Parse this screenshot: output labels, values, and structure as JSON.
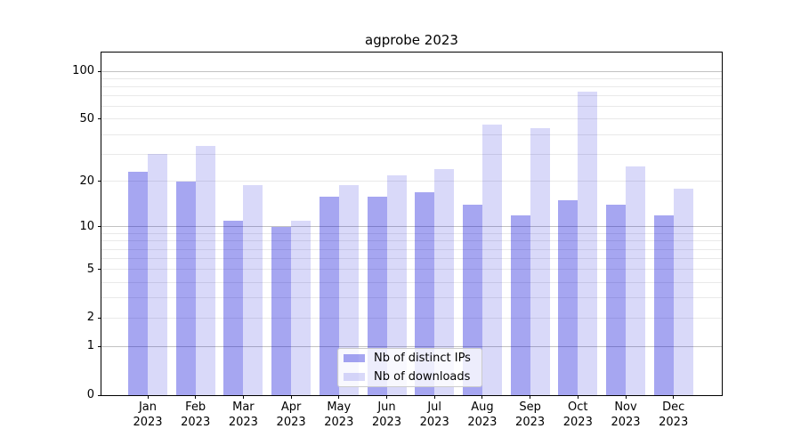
{
  "figure": {
    "background": "#ffffff",
    "axis_color": "#000000",
    "major_grid_color": "#c2c2c2",
    "minor_grid_color": "#e9e9e9"
  },
  "chart_data": {
    "type": "bar",
    "title": "agprobe 2023",
    "categories": [
      "Jan",
      "Feb",
      "Mar",
      "Apr",
      "May",
      "Jun",
      "Jul",
      "Aug",
      "Sep",
      "Oct",
      "Nov",
      "Dec"
    ],
    "category_year": "2023",
    "series": [
      {
        "name": "Nb of distinct IPs",
        "swatch": "#a6a6f2",
        "fill": "rgba(0,0,216,0.35)",
        "values": [
          23,
          20,
          11,
          10,
          16,
          16,
          17,
          14,
          12,
          15,
          14,
          12
        ]
      },
      {
        "name": "Nb of downloads",
        "swatch": "#d9d9f8",
        "fill": "rgba(0,0,216,0.15)",
        "values": [
          30,
          34,
          19,
          11,
          19,
          22,
          24,
          46,
          44,
          75,
          25,
          18
        ]
      }
    ],
    "xlabel": "",
    "ylabel": "",
    "yscale": "log1p",
    "ylim": [
      0,
      131
    ],
    "yticks": [
      0,
      1,
      2,
      5,
      10,
      20,
      50,
      100
    ],
    "gridlines": {
      "major": [
        1,
        10,
        100
      ],
      "minor": [
        2,
        3,
        4,
        5,
        6,
        7,
        8,
        9,
        20,
        30,
        40,
        50,
        60,
        70,
        80,
        90
      ]
    },
    "legend_position": "bottom-center",
    "grid": "on"
  }
}
